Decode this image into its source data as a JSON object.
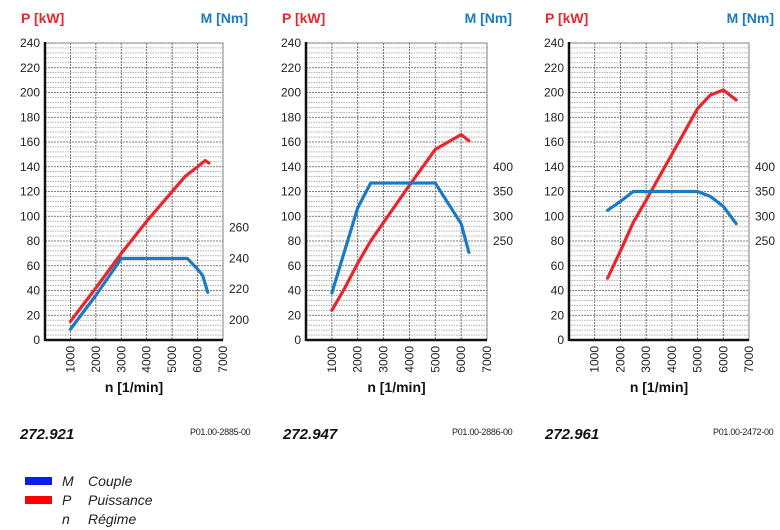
{
  "chart_data": [
    {
      "type": "line",
      "id": "272.921",
      "code": "P01.00-2885-00",
      "y_label": "P [kW]",
      "y2_label": "M [Nm]",
      "xlabel": "n [1/min]",
      "xlim": [
        0,
        7000
      ],
      "ylim": [
        0,
        240
      ],
      "y2lim": [
        187,
        380
      ],
      "x_ticks": [
        1000,
        2000,
        3000,
        4000,
        5000,
        6000,
        7000
      ],
      "y_ticks": [
        0,
        20,
        40,
        60,
        80,
        100,
        120,
        140,
        160,
        180,
        200,
        220,
        240
      ],
      "y2_ticks": [
        200,
        220,
        240,
        260
      ],
      "grid": true,
      "series": [
        {
          "axis": "P",
          "color": "#e8262c",
          "x": [
            1000,
            2000,
            3000,
            4000,
            5000,
            5500,
            6000,
            6300,
            6450
          ],
          "values": [
            15,
            42,
            70,
            96,
            120,
            132,
            140,
            145,
            143
          ]
        },
        {
          "axis": "M",
          "color": "#1a7ac2",
          "x": [
            1000,
            2000,
            3000,
            5600,
            6000,
            6200,
            6400
          ],
          "values": [
            194,
            216,
            240,
            240,
            233,
            229,
            218
          ]
        }
      ]
    },
    {
      "type": "line",
      "id": "272.947",
      "code": "P01.00-2886-00",
      "y_label": "P [kW]",
      "y2_label": "M [Nm]",
      "xlabel": "n [1/min]",
      "xlim": [
        0,
        7000
      ],
      "ylim": [
        0,
        240
      ],
      "y2lim": [
        50,
        650
      ],
      "x_ticks": [
        1000,
        2000,
        3000,
        4000,
        5000,
        6000,
        7000
      ],
      "y_ticks": [
        0,
        20,
        40,
        60,
        80,
        100,
        120,
        140,
        160,
        180,
        200,
        220,
        240
      ],
      "y2_ticks": [
        250,
        300,
        350,
        400
      ],
      "grid": true,
      "series": [
        {
          "axis": "P",
          "color": "#e8262c",
          "x": [
            1000,
            1500,
            2000,
            2500,
            3000,
            4000,
            5000,
            6000,
            6300
          ],
          "values": [
            24,
            42,
            62,
            80,
            95,
            125,
            154,
            166,
            161
          ]
        },
        {
          "axis": "M",
          "color": "#1a7ac2",
          "x": [
            1000,
            2000,
            2500,
            5000,
            6000,
            6300
          ],
          "values": [
            145,
            317,
            367,
            367,
            285,
            227
          ]
        }
      ]
    },
    {
      "type": "line",
      "id": "272.961",
      "code": "P01.00-2472-00",
      "y_label": "P [kW]",
      "y2_label": "M [Nm]",
      "xlabel": "n [1/min]",
      "xlim": [
        0,
        7000
      ],
      "ylim": [
        0,
        240
      ],
      "y2lim": [
        50,
        650
      ],
      "x_ticks": [
        1000,
        2000,
        3000,
        4000,
        5000,
        6000,
        7000
      ],
      "y_ticks": [
        0,
        20,
        40,
        60,
        80,
        100,
        120,
        140,
        160,
        180,
        200,
        220,
        240
      ],
      "y2_ticks": [
        250,
        300,
        350,
        400
      ],
      "grid": true,
      "series": [
        {
          "axis": "P",
          "color": "#e8262c",
          "x": [
            1500,
            2000,
            2500,
            3000,
            4000,
            5000,
            5500,
            6000,
            6500
          ],
          "values": [
            50,
            72,
            95,
            113,
            150,
            187,
            198,
            202,
            194
          ]
        },
        {
          "axis": "M",
          "color": "#1a7ac2",
          "x": [
            1500,
            2000,
            2500,
            5000,
            5500,
            6000,
            6500
          ],
          "values": [
            312,
            330,
            350,
            350,
            340,
            320,
            285
          ]
        }
      ]
    }
  ],
  "legend": [
    {
      "symbol": "M",
      "label": "Couple",
      "color": "#0a1cf0"
    },
    {
      "symbol": "P",
      "label": "Puissance",
      "color": "#ff0000"
    },
    {
      "symbol": "n",
      "label": "Régime"
    }
  ]
}
